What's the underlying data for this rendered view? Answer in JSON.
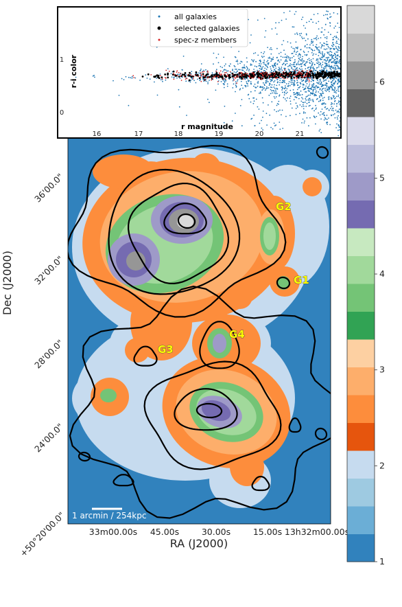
{
  "chart_data": [
    {
      "type": "heatmap",
      "xlabel": "RA (J2000)",
      "ylabel": "Dec (J2000)",
      "x_ticks": [
        "33m00.00s",
        "45.00s",
        "30.00s",
        "15.00s",
        "13h32m00.00s"
      ],
      "y_ticks": [
        "36'00.0\"",
        "32'00.0\"",
        "28'00.0\"",
        "24'00.0\"",
        "+50°20'00.0\""
      ],
      "scale_bar": "1 arcmin / 254kpc",
      "groups": [
        "G1",
        "G2",
        "G3",
        "G4"
      ],
      "colorbar": {
        "range": [
          1,
          6.8
        ],
        "ticks": [
          "1",
          "2",
          "3",
          "4",
          "5",
          "6"
        ],
        "colors": [
          "#3182bd",
          "#6baed6",
          "#9ecae1",
          "#c6dbef",
          "#e6550d",
          "#fd8d3c",
          "#fdae6b",
          "#fdd0a2",
          "#31a354",
          "#74c476",
          "#a1d99b",
          "#c7e9c0",
          "#756bb1",
          "#9e9ac8",
          "#bcbddc",
          "#dadaeb",
          "#636363",
          "#969696",
          "#bdbdbd",
          "#d9d9d9"
        ]
      }
    },
    {
      "type": "scatter",
      "xlabel": "r magnitude",
      "ylabel": "r-i color",
      "x_ticks": [
        "16",
        "17",
        "18",
        "19",
        "20",
        "21"
      ],
      "y_ticks": [
        "0",
        "1"
      ],
      "xlim": [
        15.3,
        21.9
      ],
      "ylim": [
        -0.3,
        1.45
      ],
      "legend_position": "top-center",
      "series": [
        {
          "name": "all galaxies",
          "color": "#1f77b4"
        },
        {
          "name": "selected galaxies",
          "color": "#000000"
        },
        {
          "name": "spec-z members",
          "color": "#d62728"
        }
      ]
    }
  ]
}
